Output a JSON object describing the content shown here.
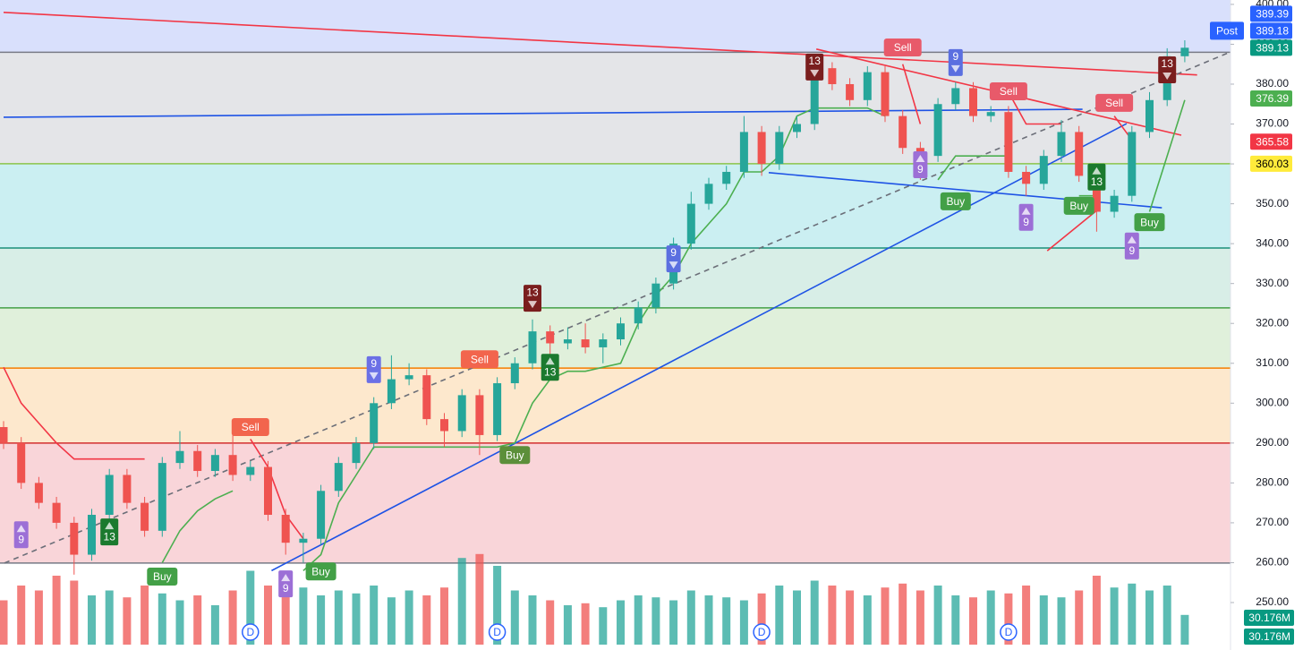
{
  "chart_data": {
    "type": "candlestick",
    "ylim": [
      238.1,
      401.1
    ],
    "yticks": [
      {
        "value": 250,
        "label": "250.00"
      },
      {
        "value": 260,
        "label": "260.00"
      },
      {
        "value": 270,
        "label": "270.00"
      },
      {
        "value": 280,
        "label": "280.00"
      },
      {
        "value": 290,
        "label": "290.00"
      },
      {
        "value": 300,
        "label": "300.00"
      },
      {
        "value": 310,
        "label": "310.00"
      },
      {
        "value": 320,
        "label": "320.00"
      },
      {
        "value": 330,
        "label": "330.00"
      },
      {
        "value": 340,
        "label": "340.00"
      },
      {
        "value": 350,
        "label": "350.00"
      },
      {
        "value": 360,
        "label": "360.00"
      },
      {
        "value": 370,
        "label": "370.00"
      },
      {
        "value": 380,
        "label": "380.00"
      },
      {
        "value": 390,
        "label": "390.00"
      },
      {
        "value": 400,
        "label": "400.00"
      }
    ],
    "up_color": "#26a69a",
    "down_color": "#ef5350",
    "open": [
      294,
      290,
      280,
      275,
      270,
      262,
      272,
      282,
      275,
      268,
      285,
      288,
      283,
      287,
      282,
      284,
      272,
      265,
      266,
      278,
      285,
      290,
      300,
      306,
      307,
      296,
      293,
      302,
      292,
      305,
      310,
      318,
      315,
      316,
      314,
      316,
      320,
      324,
      330,
      340,
      350,
      355,
      358,
      368,
      360,
      368,
      370,
      384,
      380,
      376,
      383,
      372,
      364,
      362,
      375,
      379,
      372,
      373,
      358,
      355,
      362,
      368,
      357,
      348,
      352,
      368,
      376,
      387
    ],
    "high": [
      295.5,
      291.5,
      281.5,
      276.5,
      271.5,
      273.5,
      283.5,
      283.5,
      276.5,
      286.5,
      293,
      289.5,
      288.5,
      294,
      285.5,
      285.5,
      273.5,
      267.5,
      279.5,
      286.5,
      291.5,
      301.5,
      312,
      310,
      308.5,
      297.5,
      303.5,
      303.5,
      306.5,
      311.5,
      321,
      319.5,
      319,
      320,
      317.5,
      321.5,
      325.5,
      331.5,
      341.5,
      353,
      356.5,
      359.5,
      372,
      369.5,
      369.5,
      372,
      387,
      385.5,
      381.5,
      384.5,
      384.5,
      373.5,
      365.5,
      376.5,
      380.5,
      380.5,
      374.5,
      374.5,
      359.5,
      363.5,
      371,
      369.5,
      358.5,
      353.5,
      369.5,
      378,
      389,
      391
    ],
    "low": [
      288.5,
      278.5,
      273.5,
      268.5,
      257,
      260.5,
      270.5,
      273.5,
      266.5,
      266.5,
      283.5,
      281.5,
      281.5,
      280.5,
      280.5,
      270.5,
      262,
      260,
      264.5,
      276.5,
      283.5,
      288.5,
      298.5,
      304.5,
      294.5,
      289,
      291.5,
      287,
      290.5,
      303.5,
      308.5,
      312,
      313.5,
      312.5,
      310,
      314.5,
      318.5,
      322.5,
      328.5,
      338.5,
      348.5,
      353.5,
      356.5,
      357,
      358.5,
      366.5,
      368.5,
      378.5,
      374.5,
      374.5,
      370.5,
      362.5,
      356,
      360.5,
      373.5,
      370.5,
      370.5,
      356.5,
      352,
      353.5,
      360.5,
      355.5,
      343,
      346.5,
      350.5,
      366.5,
      374.5,
      385.5
    ],
    "close": [
      290,
      280,
      275,
      270,
      262,
      272,
      282,
      275,
      268,
      285,
      288,
      283,
      287,
      282,
      284,
      272,
      265,
      266,
      278,
      285,
      290,
      300,
      306,
      307,
      296,
      293,
      302,
      292,
      305,
      310,
      318,
      315,
      316,
      314,
      316,
      320,
      324,
      330,
      340,
      350,
      355,
      358,
      368,
      360,
      368,
      370,
      384,
      380,
      376,
      383,
      372,
      364,
      362,
      375,
      379,
      372,
      373,
      358,
      355,
      362,
      368,
      357,
      348,
      352,
      368,
      376,
      387,
      389.13
    ],
    "volume": {
      "values": [
        45,
        60,
        55,
        70,
        65,
        50,
        55,
        48,
        60,
        52,
        45,
        50,
        40,
        55,
        75,
        60,
        65,
        58,
        50,
        55,
        52,
        60,
        48,
        55,
        50,
        58,
        88,
        92,
        80,
        55,
        50,
        45,
        40,
        42,
        38,
        45,
        50,
        48,
        45,
        55,
        50,
        48,
        45,
        52,
        60,
        55,
        65,
        60,
        55,
        50,
        58,
        62,
        55,
        60,
        50,
        48,
        55,
        52,
        60,
        50,
        48,
        55,
        70,
        58,
        62,
        55,
        60,
        30.176
      ],
      "value_labels": [
        null,
        null,
        null,
        null,
        null,
        null,
        null,
        null,
        null,
        null,
        null,
        null,
        null,
        null,
        null,
        null,
        null,
        null,
        null,
        null,
        null,
        null,
        null,
        null,
        null,
        null,
        null,
        null,
        null,
        null,
        null,
        null,
        null,
        null,
        null,
        null,
        null,
        null,
        null,
        null,
        null,
        null,
        null,
        null,
        null,
        null,
        null,
        null,
        null,
        null,
        null,
        null,
        null,
        null,
        null,
        null,
        null,
        null,
        null,
        null,
        null,
        null,
        null,
        null,
        null,
        null,
        null,
        "30.176M"
      ],
      "badge_color": "#089981"
    },
    "top_fill": "#d9e0fc",
    "levels": [
      {
        "value": 388,
        "color": "#787b86",
        "fill": "#e4e5e8"
      },
      {
        "value": 360.03,
        "color": "#8bc34a",
        "fill": "#cbeff2"
      },
      {
        "value": 338.9,
        "color": "#1b8f7a",
        "fill": "#d8eee7"
      },
      {
        "value": 323.9,
        "color": "#43a047",
        "fill": "#e0f0db"
      },
      {
        "value": 308.8,
        "color": "#f57c00",
        "fill": "#fde8cd"
      },
      {
        "value": 290,
        "color": "#d32f2f",
        "fill": "#f9d5d9"
      },
      {
        "value": 259.9,
        "color": "#787b86"
      }
    ],
    "supertrend": [
      {
        "color": "#f23645",
        "values": [
          309,
          300,
          295,
          290,
          286,
          286,
          286,
          286,
          286,
          null,
          null,
          null,
          null,
          null,
          291,
          284,
          272,
          266,
          null,
          null,
          null,
          null,
          null,
          null,
          null,
          null,
          null,
          null,
          null,
          null,
          null,
          null,
          null,
          null,
          null,
          null,
          null,
          null,
          null,
          null,
          null,
          null,
          null,
          null,
          null,
          null,
          null,
          null,
          null,
          null,
          null,
          385,
          370,
          null,
          null,
          null,
          null,
          378,
          370,
          370,
          370,
          null,
          null,
          372,
          366,
          null,
          null,
          null
        ]
      },
      {
        "color": "#4caf50",
        "values": [
          null,
          null,
          null,
          null,
          null,
          null,
          null,
          null,
          null,
          260,
          268,
          273,
          276,
          278,
          null,
          null,
          null,
          258,
          262,
          275,
          282,
          289,
          289,
          289,
          289,
          289,
          289,
          289,
          289,
          290,
          300,
          306,
          308,
          308,
          309,
          310,
          320,
          327,
          332,
          340,
          345,
          350,
          358,
          358,
          362,
          372,
          374,
          374,
          374,
          374,
          372,
          null,
          null,
          356,
          362,
          362,
          362,
          362,
          null,
          null,
          null,
          352,
          352,
          null,
          null,
          348,
          362,
          376
        ]
      }
    ],
    "trendlines": [
      {
        "color": "#f23645",
        "dashed": false,
        "points": [
          [
            0,
            398
          ],
          [
            67.7,
            382.3
          ]
        ]
      },
      {
        "color": "#1e53e5",
        "dashed": false,
        "points": [
          [
            0,
            371.7
          ],
          [
            61.2,
            373.7
          ]
        ]
      },
      {
        "color": "#1e53e5",
        "dashed": false,
        "points": [
          [
            15.2,
            258
          ],
          [
            63.7,
            370.1
          ]
        ]
      },
      {
        "color": "#1e53e5",
        "dashed": false,
        "points": [
          [
            43.4,
            357.8
          ],
          [
            65.7,
            349
          ]
        ]
      },
      {
        "color": "#f23645",
        "dashed": false,
        "points": [
          [
            46.1,
            388.8
          ],
          [
            66.8,
            367.2
          ]
        ]
      },
      {
        "color": "#f23645",
        "dashed": false,
        "points": [
          [
            59.2,
            338.2
          ],
          [
            62.2,
            349
          ]
        ]
      },
      {
        "color": "#6b6e78",
        "dashed": true,
        "points": [
          [
            0.05,
            259.9
          ],
          [
            69.6,
            388.1
          ]
        ]
      }
    ],
    "signals": [
      {
        "label": "9",
        "index": 1,
        "value": 267,
        "color": "#9c6fd6",
        "arrow": "up"
      },
      {
        "label": "13",
        "index": 6,
        "value": 267.7,
        "color": "#1b7a2e",
        "arrow": "up"
      },
      {
        "label": "Buy",
        "index": 9,
        "value": 256.5,
        "color": "#43a047"
      },
      {
        "label": "Sell",
        "index": 14,
        "value": 294,
        "color": "#f2654d"
      },
      {
        "label": "9",
        "index": 16,
        "value": 254.7,
        "color": "#9c6fd6",
        "arrow": "up"
      },
      {
        "label": "Buy",
        "index": 18,
        "value": 257.8,
        "color": "#43a047"
      },
      {
        "label": "9",
        "index": 21,
        "value": 308.4,
        "color": "#6b70e6",
        "arrow": "down"
      },
      {
        "label": "Sell",
        "index": 27,
        "value": 311,
        "color": "#f2654d"
      },
      {
        "label": "Buy",
        "index": 29,
        "value": 287,
        "color": "#5c8f3a"
      },
      {
        "label": "13",
        "index": 30,
        "value": 326.3,
        "color": "#7a1e1e",
        "arrow": "down"
      },
      {
        "label": "13",
        "index": 31,
        "value": 309,
        "color": "#1b7a2e",
        "arrow": "up"
      },
      {
        "label": "9",
        "index": 38,
        "value": 336.2,
        "color": "#5b6fe0",
        "arrow": "down"
      },
      {
        "label": "13",
        "index": 46,
        "value": 384.3,
        "color": "#7a1e1e",
        "arrow": "down"
      },
      {
        "label": "Sell",
        "index": 51,
        "value": 389.2,
        "color": "#e85a6a"
      },
      {
        "label": "9",
        "index": 52,
        "value": 359.8,
        "color": "#9c6fd6",
        "arrow": "up"
      },
      {
        "label": "9",
        "index": 54,
        "value": 385.4,
        "color": "#5b6fe0",
        "arrow": "down"
      },
      {
        "label": "Buy",
        "index": 54,
        "value": 350.6,
        "color": "#43a047"
      },
      {
        "label": "Sell",
        "index": 57,
        "value": 378.2,
        "color": "#e85a6a"
      },
      {
        "label": "9",
        "index": 58,
        "value": 346.6,
        "color": "#9c6fd6",
        "arrow": "up"
      },
      {
        "label": "Buy",
        "index": 61,
        "value": 349.5,
        "color": "#43a047"
      },
      {
        "label": "13",
        "index": 62,
        "value": 356.7,
        "color": "#1b7a2e",
        "arrow": "up"
      },
      {
        "label": "Sell",
        "index": 63,
        "value": 375.3,
        "color": "#e85a6a"
      },
      {
        "label": "9",
        "index": 64,
        "value": 339.4,
        "color": "#9c6fd6",
        "arrow": "up"
      },
      {
        "label": "Buy",
        "index": 65,
        "value": 345.4,
        "color": "#43a047"
      },
      {
        "label": "13",
        "index": 66,
        "value": 383.6,
        "color": "#7a1e1e",
        "arrow": "down"
      }
    ],
    "events": [
      {
        "label": "D",
        "index": 14
      },
      {
        "label": "D",
        "index": 28
      },
      {
        "label": "D",
        "index": 43
      },
      {
        "label": "D",
        "index": 57
      }
    ],
    "price_badges": [
      {
        "value": 389.39,
        "color": "#2962ff"
      },
      {
        "value": 389.18,
        "color": "#2962ff",
        "tag": "Post"
      },
      {
        "value": 389.13,
        "color": "#089981"
      },
      {
        "value": 376.39,
        "color": "#4caf50"
      },
      {
        "value": 365.58,
        "color": "#f23645"
      },
      {
        "value": 360.03,
        "color": "#ffeb3b",
        "text_color": "#000000"
      }
    ]
  }
}
